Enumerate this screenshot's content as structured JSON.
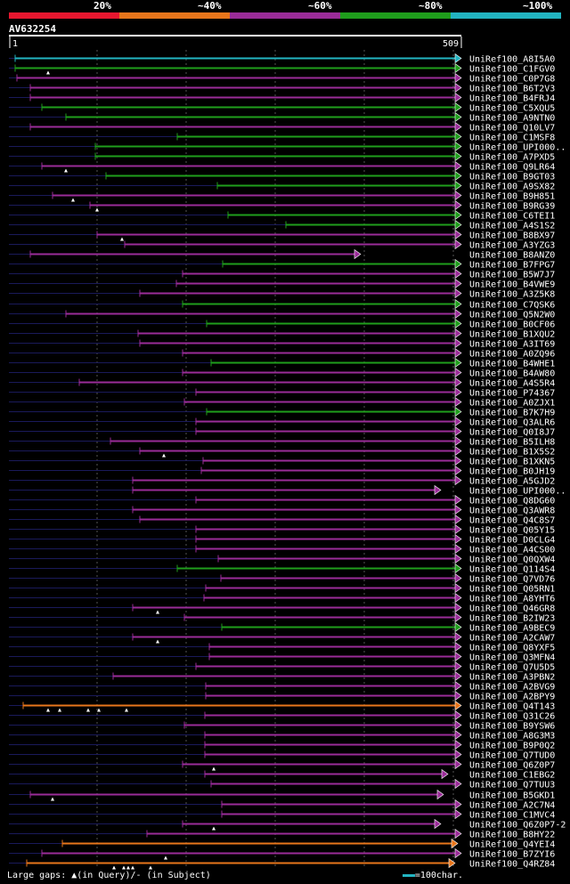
{
  "chart_data": {
    "type": "alignment-overview",
    "query": "AV632254",
    "query_length": 509,
    "ruler": {
      "start": "1",
      "end": "509"
    },
    "identity_legend": [
      {
        "label": "20%",
        "color": "#e8172f"
      },
      {
        "label": "~40%",
        "color": "#e8761b"
      },
      {
        "label": "~60%",
        "color": "#9a2c98"
      },
      {
        "label": "~80%",
        "color": "#1f9e1c"
      },
      {
        "label": "~100%",
        "color": "#22b4c1"
      }
    ],
    "hits": [
      {
        "name": "UniRef100_A8I5A0",
        "start": 8,
        "end": 509,
        "cls": 4
      },
      {
        "name": "UniRef100_C1FGV0",
        "start": 8,
        "end": 509,
        "cls": 3,
        "marks": [
          45
        ]
      },
      {
        "name": "UniRef100_C0P7G8",
        "start": 10,
        "end": 509,
        "cls": 2
      },
      {
        "name": "UniRef100_B6T2V3",
        "start": 25,
        "end": 509,
        "cls": 2
      },
      {
        "name": "UniRef100_B4FRJ4",
        "start": 25,
        "end": 509,
        "cls": 2
      },
      {
        "name": "UniRef100_C5XQU5",
        "start": 38,
        "end": 509,
        "cls": 3
      },
      {
        "name": "UniRef100_A9NTN0",
        "start": 65,
        "end": 509,
        "cls": 3
      },
      {
        "name": "UniRef100_Q10LV7",
        "start": 25,
        "end": 509,
        "cls": 2
      },
      {
        "name": "UniRef100_C1MSF8",
        "start": 190,
        "end": 509,
        "cls": 3
      },
      {
        "name": "UniRef100_UPI000..",
        "start": 98,
        "end": 509,
        "cls": 3
      },
      {
        "name": "UniRef100_A7PXD5",
        "start": 98,
        "end": 509,
        "cls": 3
      },
      {
        "name": "UniRef100_Q9LR64",
        "start": 38,
        "end": 509,
        "cls": 2,
        "marks": [
          65
        ]
      },
      {
        "name": "UniRef100_B9GT03",
        "start": 110,
        "end": 509,
        "cls": 3
      },
      {
        "name": "UniRef100_A9SX82",
        "start": 235,
        "end": 509,
        "cls": 3
      },
      {
        "name": "UniRef100_B9H851",
        "start": 50,
        "end": 509,
        "cls": 2,
        "marks": [
          73
        ]
      },
      {
        "name": "UniRef100_B9RG39",
        "start": 92,
        "end": 509,
        "cls": 2,
        "marks": [
          100
        ]
      },
      {
        "name": "UniRef100_C6TEI1",
        "start": 247,
        "end": 509,
        "cls": 3
      },
      {
        "name": "UniRef100_A4S1S2",
        "start": 312,
        "end": 509,
        "cls": 3
      },
      {
        "name": "UniRef100_B8BX97",
        "start": 100,
        "end": 509,
        "cls": 2,
        "marks": [
          128
        ]
      },
      {
        "name": "UniRef100_A3YZG3",
        "start": 131,
        "end": 509,
        "cls": 2
      },
      {
        "name": "UniRef100_B8ANZ0",
        "start": 25,
        "end": 396,
        "cls": 2
      },
      {
        "name": "UniRef100_B7FPG7",
        "start": 241,
        "end": 509,
        "cls": 3
      },
      {
        "name": "UniRef100_B5W7J7",
        "start": 196,
        "end": 509,
        "cls": 2
      },
      {
        "name": "UniRef100_B4VWE9",
        "start": 189,
        "end": 509,
        "cls": 2
      },
      {
        "name": "UniRef100_A3Z5K8",
        "start": 148,
        "end": 509,
        "cls": 2
      },
      {
        "name": "UniRef100_C7QSK6",
        "start": 196,
        "end": 509,
        "cls": 3
      },
      {
        "name": "UniRef100_Q5N2W0",
        "start": 65,
        "end": 509,
        "cls": 2
      },
      {
        "name": "UniRef100_B0CF06",
        "start": 223,
        "end": 509,
        "cls": 3
      },
      {
        "name": "UniRef100_B1XQU2",
        "start": 146,
        "end": 509,
        "cls": 2
      },
      {
        "name": "UniRef100_A3IT69",
        "start": 148,
        "end": 509,
        "cls": 2
      },
      {
        "name": "UniRef100_A0ZQ96",
        "start": 196,
        "end": 509,
        "cls": 2
      },
      {
        "name": "UniRef100_B4WHE1",
        "start": 228,
        "end": 509,
        "cls": 3
      },
      {
        "name": "UniRef100_B4AW80",
        "start": 196,
        "end": 509,
        "cls": 2
      },
      {
        "name": "UniRef100_A4S5R4",
        "start": 80,
        "end": 509,
        "cls": 2
      },
      {
        "name": "UniRef100_P74367",
        "start": 211,
        "end": 509,
        "cls": 2
      },
      {
        "name": "UniRef100_A0ZJX1",
        "start": 198,
        "end": 509,
        "cls": 2
      },
      {
        "name": "UniRef100_B7K7H9",
        "start": 223,
        "end": 509,
        "cls": 3
      },
      {
        "name": "UniRef100_Q3ALR6",
        "start": 211,
        "end": 509,
        "cls": 2
      },
      {
        "name": "UniRef100_Q0I8J7",
        "start": 211,
        "end": 509,
        "cls": 2
      },
      {
        "name": "UniRef100_B5ILH8",
        "start": 115,
        "end": 509,
        "cls": 2
      },
      {
        "name": "UniRef100_B1X5S2",
        "start": 148,
        "end": 509,
        "cls": 2,
        "marks": [
          175
        ]
      },
      {
        "name": "UniRef100_B1XKN5",
        "start": 219,
        "end": 509,
        "cls": 2
      },
      {
        "name": "UniRef100_B0JH19",
        "start": 217,
        "end": 509,
        "cls": 2
      },
      {
        "name": "UniRef100_A5GJD2",
        "start": 140,
        "end": 509,
        "cls": 2
      },
      {
        "name": "UniRef100_UPI000..",
        "start": 140,
        "end": 486,
        "cls": 2
      },
      {
        "name": "UniRef100_Q8DG60",
        "start": 211,
        "end": 509,
        "cls": 2
      },
      {
        "name": "UniRef100_Q3AWR8",
        "start": 140,
        "end": 509,
        "cls": 2
      },
      {
        "name": "UniRef100_Q4C8S7",
        "start": 148,
        "end": 509,
        "cls": 2
      },
      {
        "name": "UniRef100_Q05Y15",
        "start": 211,
        "end": 509,
        "cls": 2
      },
      {
        "name": "UniRef100_D0CLG4",
        "start": 211,
        "end": 509,
        "cls": 2
      },
      {
        "name": "UniRef100_A4CS00",
        "start": 211,
        "end": 509,
        "cls": 2
      },
      {
        "name": "UniRef100_Q0QXW4",
        "start": 236,
        "end": 509,
        "cls": 2
      },
      {
        "name": "UniRef100_Q114S4",
        "start": 190,
        "end": 509,
        "cls": 3
      },
      {
        "name": "UniRef100_Q7VD76",
        "start": 239,
        "end": 509,
        "cls": 2
      },
      {
        "name": "UniRef100_Q05RN1",
        "start": 222,
        "end": 509,
        "cls": 2
      },
      {
        "name": "UniRef100_A8YHT6",
        "start": 220,
        "end": 509,
        "cls": 2
      },
      {
        "name": "UniRef100_Q46GR8",
        "start": 140,
        "end": 509,
        "cls": 2,
        "marks": [
          168
        ]
      },
      {
        "name": "UniRef100_B2IW23",
        "start": 198,
        "end": 509,
        "cls": 2
      },
      {
        "name": "UniRef100_A9BEC9",
        "start": 240,
        "end": 509,
        "cls": 3
      },
      {
        "name": "UniRef100_A2CAW7",
        "start": 140,
        "end": 509,
        "cls": 2,
        "marks": [
          168
        ]
      },
      {
        "name": "UniRef100_Q8YXF5",
        "start": 226,
        "end": 509,
        "cls": 2
      },
      {
        "name": "UniRef100_Q3MFN4",
        "start": 226,
        "end": 509,
        "cls": 2
      },
      {
        "name": "UniRef100_Q7U5D5",
        "start": 211,
        "end": 509,
        "cls": 2
      },
      {
        "name": "UniRef100_A3PBN2",
        "start": 118,
        "end": 509,
        "cls": 2
      },
      {
        "name": "UniRef100_A2BVG9",
        "start": 222,
        "end": 509,
        "cls": 2
      },
      {
        "name": "UniRef100_A2BPY9",
        "start": 222,
        "end": 509,
        "cls": 2
      },
      {
        "name": "UniRef100_Q4T143",
        "start": 17,
        "end": 509,
        "cls": 1,
        "marks": [
          45,
          58,
          90,
          102,
          133
        ]
      },
      {
        "name": "UniRef100_Q31C26",
        "start": 221,
        "end": 509,
        "cls": 2
      },
      {
        "name": "UniRef100_B9YSW6",
        "start": 198,
        "end": 509,
        "cls": 2
      },
      {
        "name": "UniRef100_A8G3M3",
        "start": 221,
        "end": 509,
        "cls": 2
      },
      {
        "name": "UniRef100_B9P0Q2",
        "start": 221,
        "end": 509,
        "cls": 2
      },
      {
        "name": "UniRef100_Q7TUD0",
        "start": 221,
        "end": 509,
        "cls": 2
      },
      {
        "name": "UniRef100_Q6Z0P7",
        "start": 196,
        "end": 509,
        "cls": 2,
        "marks": [
          231
        ]
      },
      {
        "name": "UniRef100_C1EBG2",
        "start": 221,
        "end": 494,
        "cls": 2
      },
      {
        "name": "UniRef100_Q7TUU3",
        "start": 228,
        "end": 509,
        "cls": 2
      },
      {
        "name": "UniRef100_B5GKD1",
        "start": 25,
        "end": 489,
        "cls": 2,
        "marks": [
          50
        ]
      },
      {
        "name": "UniRef100_A2C7N4",
        "start": 240,
        "end": 509,
        "cls": 2
      },
      {
        "name": "UniRef100_C1MVC4",
        "start": 240,
        "end": 509,
        "cls": 2
      },
      {
        "name": "UniRef100_Q6Z0P7-2",
        "start": 196,
        "end": 486,
        "cls": 2,
        "marks": [
          231
        ]
      },
      {
        "name": "UniRef100_B8HY22",
        "start": 156,
        "end": 509,
        "cls": 2
      },
      {
        "name": "UniRef100_Q4YEI4",
        "start": 61,
        "end": 505,
        "cls": 1
      },
      {
        "name": "UniRef100_B7ZYI6",
        "start": 38,
        "end": 509,
        "cls": 2,
        "marks": [
          177
        ]
      },
      {
        "name": "UniRef100_Q4RZ84",
        "start": 21,
        "end": 502,
        "cls": 1,
        "marks": [
          119,
          130,
          135,
          140,
          160
        ]
      }
    ]
  },
  "footer": {
    "gaps_text": "Large gaps: ▲(in Query)/- (in Subject)",
    "scale_text": "=100char.",
    "scale_color": "#22b4c1"
  }
}
